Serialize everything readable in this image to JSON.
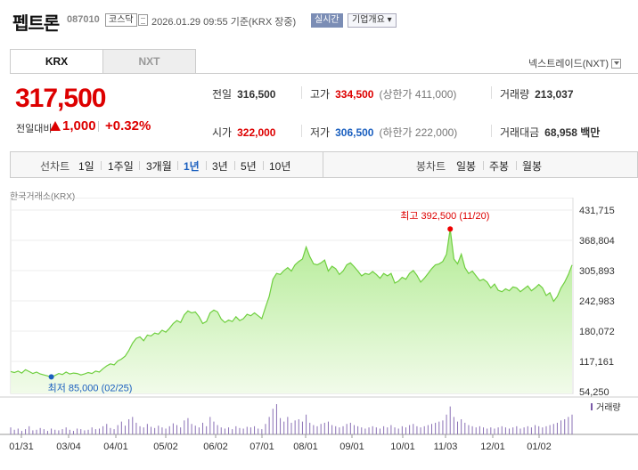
{
  "header": {
    "name": "펩트론",
    "code": "087010",
    "market": "코스닥",
    "datetime": "2026.01.29 09:55 기준(KRX 장중)",
    "realtime": "실시간",
    "company_btn": "기업개요 ▾"
  },
  "tabs": {
    "krx": "KRX",
    "nxt": "NXT",
    "nxt_link": "넥스트레이드(NXT)"
  },
  "price": {
    "current": "317,500",
    "change_label": "전일대비",
    "change": "1,000",
    "change_pct": "+0.32%"
  },
  "stats": {
    "prev_label": "전일",
    "prev": "316,500",
    "high_label": "고가",
    "high": "334,500",
    "upper_limit": "(상한가 411,000)",
    "volume_label": "거래량",
    "volume": "213,037",
    "open_label": "시가",
    "open": "322,000",
    "low_label": "저가",
    "low": "306,500",
    "lower_limit": "(하한가 222,000)",
    "amount_label": "거래대금",
    "amount": "68,958 백만"
  },
  "periods": {
    "line_label": "선차트",
    "items": [
      "1일",
      "1주일",
      "3개월",
      "1년",
      "3년",
      "5년",
      "10년"
    ],
    "selected": "1년",
    "candle_label": "봉차트",
    "candles": [
      "일봉",
      "주봉",
      "월봉"
    ]
  },
  "source": "한국거래소(KRX)",
  "colors": {
    "up": "#dd0000",
    "down": "#1a5fbf",
    "line": "#6fcf3f",
    "fill_top": "#aeea8e"
  },
  "chart_data": {
    "type": "area",
    "y_ticks": [
      "431,715",
      "368,804",
      "305,893",
      "242,983",
      "180,072",
      "117,161",
      "54,250"
    ],
    "ylim": [
      54250,
      431715
    ],
    "x_ticks": [
      "01/31",
      "03/04",
      "04/01",
      "05/02",
      "06/02",
      "07/01",
      "08/01",
      "09/01",
      "10/01",
      "11/03",
      "12/01",
      "01/02"
    ],
    "max_label": "최고 392,500 (11/20)",
    "min_label": "최저 85,000 (02/25)",
    "volume_legend": "거래량",
    "series": [
      {
        "values": [
          96000,
          94000,
          97000,
          93000,
          100000,
          96000,
          92000,
          95000,
          91000,
          89000,
          87000,
          85000,
          88000,
          92000,
          90000,
          95000,
          91000,
          93000,
          92000,
          89000,
          91000,
          94000,
          92000,
          97000,
          95000,
          102000,
          108000,
          112000,
          110000,
          118000,
          122000,
          128000,
          140000,
          155000,
          165000,
          168000,
          160000,
          172000,
          170000,
          176000,
          174000,
          182000,
          178000,
          186000,
          196000,
          202000,
          198000,
          214000,
          222000,
          218000,
          220000,
          210000,
          196000,
          200000,
          218000,
          224000,
          220000,
          205000,
          198000,
          203000,
          200000,
          210000,
          202000,
          206000,
          215000,
          212000,
          218000,
          212000,
          206000,
          230000,
          252000,
          288000,
          300000,
          298000,
          306000,
          312000,
          305000,
          318000,
          325000,
          330000,
          355000,
          335000,
          320000,
          318000,
          322000,
          328000,
          305000,
          315000,
          310000,
          298000,
          305000,
          318000,
          322000,
          314000,
          305000,
          295000,
          300000,
          298000,
          304000,
          298000,
          290000,
          300000,
          295000,
          300000,
          280000,
          284000,
          292000,
          288000,
          300000,
          306000,
          296000,
          282000,
          290000,
          300000,
          310000,
          318000,
          320000,
          325000,
          340000,
          392500,
          330000,
          320000,
          340000,
          312000,
          300000,
          305000,
          295000,
          285000,
          288000,
          282000,
          270000,
          278000,
          265000,
          262000,
          268000,
          264000,
          272000,
          270000,
          262000,
          268000,
          274000,
          264000,
          270000,
          277000,
          270000,
          254000,
          260000,
          242000,
          252000,
          270000,
          282000,
          298000,
          317500
        ]
      }
    ],
    "volume": [
      12,
      8,
      10,
      6,
      9,
      14,
      7,
      8,
      11,
      9,
      6,
      10,
      8,
      7,
      9,
      12,
      8,
      6,
      10,
      9,
      7,
      8,
      12,
      9,
      10,
      14,
      18,
      11,
      9,
      16,
      22,
      15,
      26,
      30,
      20,
      14,
      12,
      18,
      13,
      11,
      15,
      12,
      10,
      14,
      19,
      16,
      12,
      24,
      28,
      18,
      15,
      12,
      20,
      14,
      30,
      22,
      16,
      12,
      10,
      12,
      9,
      14,
      11,
      10,
      13,
      12,
      14,
      10,
      9,
      18,
      30,
      44,
      52,
      28,
      22,
      30,
      20,
      24,
      26,
      22,
      34,
      20,
      16,
      14,
      18,
      20,
      22,
      16,
      14,
      12,
      14,
      18,
      20,
      16,
      14,
      12,
      10,
      12,
      14,
      12,
      10,
      14,
      12,
      16,
      12,
      10,
      14,
      12,
      16,
      18,
      14,
      12,
      14,
      16,
      18,
      20,
      22,
      24,
      34,
      48,
      30,
      22,
      26,
      20,
      16,
      14,
      12,
      14,
      12,
      10,
      12,
      10,
      12,
      14,
      12,
      10,
      12,
      14,
      10,
      12,
      14,
      12,
      16,
      14,
      12,
      14,
      16,
      18,
      20,
      24,
      26,
      30,
      34
    ]
  }
}
